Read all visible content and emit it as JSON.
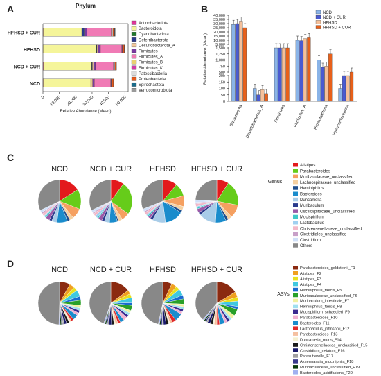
{
  "panel_letters": [
    "A",
    "B",
    "C",
    "D"
  ],
  "chart_data": [
    {
      "panel": "A",
      "type": "bar",
      "orientation": "horizontal",
      "stacked": true,
      "title": "Phylum",
      "xlabel": "Relative Abundance (Mean)",
      "xticks": [
        "0",
        "10,000",
        "20,000",
        "30,000",
        "40,000",
        "50,000"
      ],
      "xlim": [
        0,
        52000
      ],
      "categories": [
        "HFHSD + CUR",
        "HFHSD",
        "NCD + CUR",
        "NCD"
      ],
      "series": [
        {
          "name": "Actinobacteriota",
          "color": "#e0379a",
          "values": [
            200,
            150,
            250,
            200
          ]
        },
        {
          "name": "Bacteroidota",
          "color": "#f5f59a",
          "values": [
            23500,
            32500,
            29500,
            29000
          ]
        },
        {
          "name": "Cyanobacteriota",
          "color": "#1f7a2b",
          "values": [
            200,
            150,
            150,
            150
          ]
        },
        {
          "name": "Deferribacterota",
          "color": "#2b3a8c",
          "values": [
            1300,
            200,
            300,
            200
          ]
        },
        {
          "name": "Desulfobacterota_A",
          "color": "#f2c79a",
          "values": [
            500,
            600,
            700,
            800
          ]
        },
        {
          "name": "Firmicutes",
          "color": "#7a3aa0",
          "values": [
            1000,
            1500,
            1200,
            1000
          ]
        },
        {
          "name": "Firmicutes_A",
          "color": "#f07ab5",
          "values": [
            15000,
            13000,
            11000,
            10000
          ]
        },
        {
          "name": "Firmicutes_B",
          "color": "#e8d070",
          "values": [
            200,
            150,
            150,
            150
          ]
        },
        {
          "name": "Firmicutes_K",
          "color": "#d23aa8",
          "values": [
            300,
            350,
            300,
            300
          ]
        },
        {
          "name": "Patescibacteria",
          "color": "#dcdcdc",
          "values": [
            500,
            400,
            400,
            400
          ]
        },
        {
          "name": "Proteobacteria",
          "color": "#e85a1a",
          "values": [
            1000,
            700,
            700,
            900
          ]
        },
        {
          "name": "Spirochaetota",
          "color": "#1a6b8a",
          "values": [
            150,
            100,
            100,
            100
          ]
        },
        {
          "name": "Verrucomicrobiota",
          "color": "#9a9a9a",
          "values": [
            300,
            150,
            200,
            200
          ]
        }
      ]
    },
    {
      "panel": "B",
      "type": "bar",
      "broken_axis": true,
      "ylabel": "Relative Abundance (Mean)",
      "yticks": [
        "0",
        "50",
        "100",
        "150",
        "200",
        "500",
        "750",
        "1,000",
        "1,250",
        "1,500",
        "5,000",
        "10,000",
        "15,000",
        "20,000",
        "25,000",
        "30,000",
        "35,000",
        "40,000"
      ],
      "categories": [
        "Bacteroidota",
        "Desulfobacterota_A",
        "Firmicutes",
        "Firmicutes_A",
        "Proteobacteria",
        "Verrucomicrobiota"
      ],
      "series": [
        {
          "name": "NCD",
          "color": "#8ab4e8",
          "values": [
            29000,
            100,
            1500,
            10000,
            1000,
            100
          ]
        },
        {
          "name": "NCD + CUR",
          "color": "#4a5ad0",
          "values": [
            30000,
            50,
            1500,
            9500,
            700,
            300
          ]
        },
        {
          "name": "HFHSD",
          "color": "#f5c09a",
          "values": [
            33000,
            90,
            1500,
            12000,
            750,
            260
          ]
        },
        {
          "name": "HFHSD + CUR",
          "color": "#e8601a",
          "values": [
            25000,
            60,
            1500,
            13000,
            1250,
            500
          ]
        }
      ]
    },
    {
      "panel": "C",
      "type": "pie",
      "legend_title": "Genus",
      "groups": [
        "NCD",
        "NCD + CUR",
        "HFHSD",
        "HFHSD + CUR"
      ],
      "categories": [
        "Alistipes",
        "Parabacteroides",
        "Muribaculaceae_unclassified",
        "Lachnospiraceae_unclassified",
        "Heminiphilus",
        "Bacteroides",
        "Duncaniella",
        "Muribaculum",
        "Oscillospiraceae_unclassified",
        "Mucispirillum",
        "Lactobacillus",
        "Christensenellaceae_unclassified",
        "Clostridiales_unclassified",
        "Clostridium",
        "Others"
      ],
      "colors": [
        "#e31a1c",
        "#66cc1a",
        "#f5a060",
        "#f5d0a0",
        "#1f4e8c",
        "#1a8ccc",
        "#a8cce8",
        "#2a3a8c",
        "#9a5aa8",
        "#40c8c8",
        "#a0d0f0",
        "#f2b8c8",
        "#c8a0c8",
        "#d0e0f8",
        "#888888"
      ],
      "series": [
        {
          "name": "NCD",
          "values": [
            16,
            15,
            8,
            3,
            2,
            8,
            4,
            2,
            3,
            1,
            1,
            2,
            1,
            2,
            32
          ]
        },
        {
          "name": "NCD + CUR",
          "values": [
            10,
            25,
            6,
            3,
            1,
            6,
            4,
            2,
            3,
            1,
            2,
            2,
            1,
            2,
            32
          ]
        },
        {
          "name": "HFHSD",
          "values": [
            11,
            10,
            8,
            3,
            2,
            14,
            10,
            2,
            2,
            1,
            1,
            2,
            1,
            2,
            31
          ]
        },
        {
          "name": "HFHSD + CUR",
          "values": [
            9,
            19,
            10,
            3,
            2,
            8,
            13,
            2,
            3,
            1,
            1,
            2,
            1,
            2,
            24
          ]
        }
      ]
    },
    {
      "panel": "D",
      "type": "pie",
      "legend_title": "ASVs",
      "groups": [
        "NCD",
        "NCD + CUR",
        "HFHSD",
        "HFHSD + CUR"
      ],
      "categories": [
        "Parabacteroides_goldsteinii_F1",
        "Alistipes_F2",
        "Alistipes_F3",
        "Alistipes_F4",
        "Heminiphilus_faecis_F5",
        "Muribaculaceae_unclassified_F6",
        "Muribaculum_intestinale_F7",
        "Heminiphilus_faecis_F8",
        "Mucispirillum_schaedleri_F9",
        "Parabacteroides_F10",
        "Bacteroides_F11",
        "Lactobacillus_johnsonii_F12",
        "Parabacteroides_F13",
        "Duncaniella_muris_F14",
        "Christensenellaceae_unclassified_F15",
        "Clostridium_celatum_F16",
        "Parasutterella_F17",
        "Akkermansia_muciniphila_F18",
        "Muribaculaceae_unclassified_F19",
        "Bacteroides_acidifaciens_F20",
        "Others"
      ],
      "colors": [
        "#8b2a10",
        "#f0a020",
        "#e8e020",
        "#40c8e0",
        "#1a6ad0",
        "#28a028",
        "#f0f0a0",
        "#a0e0f0",
        "#3a2a90",
        "#f0b0d0",
        "#1a8ccc",
        "#e02a2a",
        "#f5c0a0",
        "#f5f0d0",
        "#1a1a1a",
        "#1a1a6b",
        "#a0a0a0",
        "#3a3a8c",
        "#0a3a0a",
        "#a0b0f0",
        "#888888"
      ],
      "series": [
        {
          "name": "NCD",
          "values": [
            8,
            4,
            3,
            5,
            3,
            4,
            2,
            2,
            2,
            2,
            4,
            2,
            1,
            1,
            2,
            2,
            1,
            1,
            1,
            1,
            50
          ]
        },
        {
          "name": "NCD + CUR",
          "values": [
            15,
            3,
            3,
            4,
            2,
            4,
            2,
            2,
            2,
            3,
            3,
            2,
            2,
            1,
            2,
            2,
            1,
            1,
            1,
            1,
            45
          ]
        },
        {
          "name": "HFHSD",
          "values": [
            7,
            4,
            3,
            5,
            3,
            4,
            2,
            2,
            2,
            2,
            6,
            3,
            2,
            1,
            2,
            2,
            1,
            1,
            1,
            1,
            47
          ]
        },
        {
          "name": "HFHSD + CUR",
          "values": [
            16,
            4,
            3,
            4,
            2,
            5,
            3,
            2,
            2,
            2,
            4,
            2,
            2,
            1,
            2,
            2,
            1,
            1,
            1,
            1,
            38
          ]
        }
      ]
    }
  ]
}
